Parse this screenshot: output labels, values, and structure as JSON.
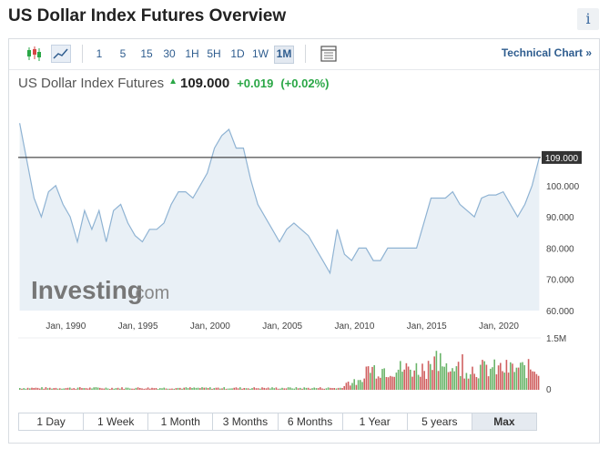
{
  "page": {
    "title": "US Dollar Index Futures Overview",
    "info_icon": "i"
  },
  "toolbar": {
    "icons": [
      "candlestick-icon",
      "line-chart-icon",
      "table-icon"
    ],
    "intervals": [
      "1",
      "5",
      "15",
      "30",
      "1H",
      "5H",
      "1D",
      "1W",
      "1M"
    ],
    "active_interval": "1M",
    "technical_link": "Technical Chart »"
  },
  "quote": {
    "name": "US Dollar Index Futures",
    "arrow": "▲",
    "price": "109.000",
    "change": "+0.019",
    "change_pct": "(+0.02%)"
  },
  "watermark": {
    "brand": "Investing",
    "domain": ".com"
  },
  "range_buttons": [
    "1 Day",
    "1 Week",
    "1 Month",
    "3 Months",
    "6 Months",
    "1 Year",
    "5 years",
    "Max"
  ],
  "active_range": "Max",
  "colors": {
    "line": "#8fb3d3",
    "area": "#e9f0f6",
    "volume_up": "#6ab56a",
    "volume_down": "#d06060",
    "accent": "#2f5d8f",
    "positive": "#2aa746"
  },
  "chart_data": {
    "type": "area",
    "title": "",
    "x_tick_labels": [
      "Jan, 1990",
      "Jan, 1995",
      "Jan, 2000",
      "Jan, 2005",
      "Jan, 2010",
      "Jan, 2015",
      "Jan, 2020"
    ],
    "y_tick_labels": [
      "60.000",
      "70.000",
      "80.000",
      "90.000",
      "100.000"
    ],
    "ylim": [
      60,
      125
    ],
    "current_price_label": "109.000",
    "current_price": 109.0,
    "x": [
      1986.8,
      1987.3,
      1987.8,
      1988.3,
      1988.8,
      1989.3,
      1989.8,
      1990.3,
      1990.8,
      1991.3,
      1991.8,
      1992.3,
      1992.8,
      1993.3,
      1993.8,
      1994.3,
      1994.8,
      1995.3,
      1995.8,
      1996.3,
      1996.8,
      1997.3,
      1997.8,
      1998.3,
      1998.8,
      1999.3,
      1999.8,
      2000.3,
      2000.8,
      2001.3,
      2001.8,
      2002.3,
      2002.8,
      2003.3,
      2003.8,
      2004.3,
      2004.8,
      2005.3,
      2005.8,
      2006.3,
      2006.8,
      2007.3,
      2007.8,
      2008.3,
      2008.8,
      2009.3,
      2009.8,
      2010.3,
      2010.8,
      2011.3,
      2011.8,
      2012.3,
      2012.8,
      2013.3,
      2013.8,
      2014.3,
      2014.8,
      2015.3,
      2015.8,
      2016.3,
      2016.8,
      2017.3,
      2017.8,
      2018.3,
      2018.8,
      2019.3,
      2019.8,
      2020.3,
      2020.8,
      2021.3,
      2021.8,
      2022.3,
      2022.8
    ],
    "values": [
      120,
      108,
      96,
      90,
      98,
      100,
      94,
      90,
      82,
      92,
      86,
      92,
      82,
      92,
      94,
      88,
      84,
      82,
      86,
      86,
      88,
      94,
      98,
      98,
      96,
      100,
      104,
      112,
      116,
      118,
      112,
      112,
      102,
      94,
      90,
      86,
      82,
      86,
      88,
      86,
      84,
      80,
      76,
      72,
      86,
      78,
      76,
      80,
      80,
      76,
      76,
      80,
      80,
      80,
      80,
      80,
      88,
      96,
      96,
      96,
      98,
      94,
      92,
      90,
      96,
      97,
      97,
      98,
      94,
      90,
      94,
      100,
      109
    ],
    "volume_label_top": "1.5M",
    "volume_label_bottom": "0"
  }
}
